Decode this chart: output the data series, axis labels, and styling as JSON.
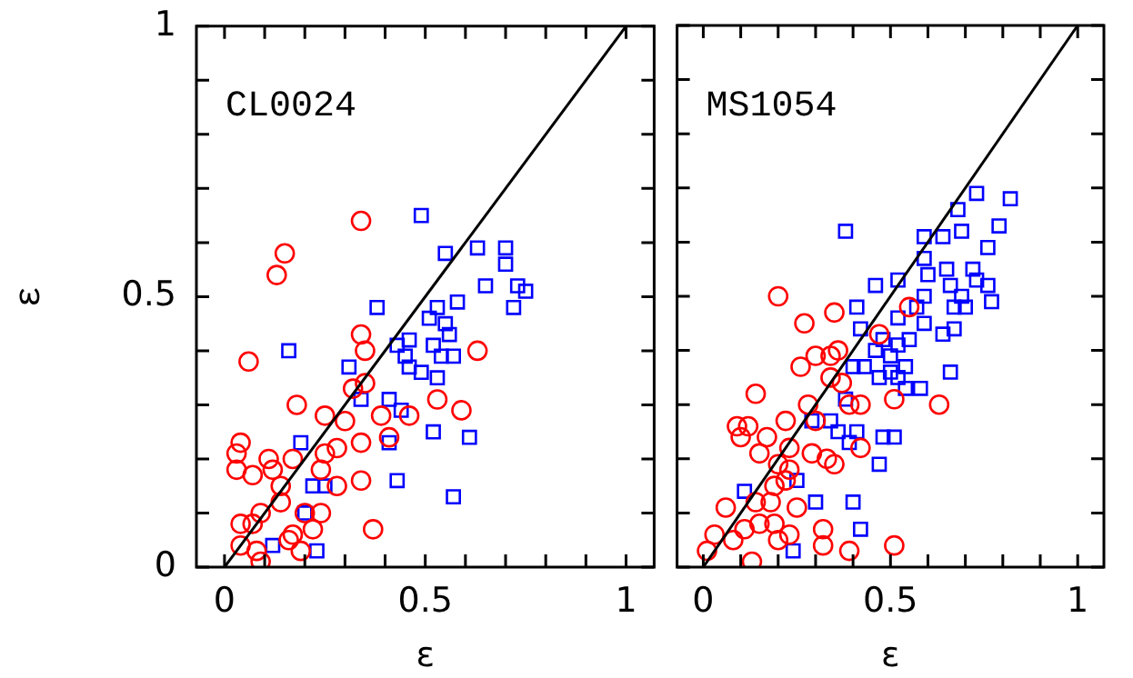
{
  "chart_data": [
    {
      "type": "scatter",
      "annotations": [
        "CL0024"
      ],
      "xlabel": "ε",
      "ylabel": "ε",
      "xlim": [
        -0.07,
        1.07
      ],
      "ylim": [
        0,
        1
      ],
      "xticks": [
        {
          "value": 0,
          "label": "0"
        },
        {
          "value": 0.1,
          "label": null
        },
        {
          "value": 0.2,
          "label": null
        },
        {
          "value": 0.3,
          "label": null
        },
        {
          "value": 0.4,
          "label": null
        },
        {
          "value": 0.5,
          "label": "0.5"
        },
        {
          "value": 0.6,
          "label": null
        },
        {
          "value": 0.7,
          "label": null
        },
        {
          "value": 0.8,
          "label": null
        },
        {
          "value": 0.9,
          "label": null
        },
        {
          "value": 1,
          "label": "1"
        }
      ],
      "yticks": [
        {
          "value": 0,
          "label": "0"
        },
        {
          "value": 0.1,
          "label": null
        },
        {
          "value": 0.2,
          "label": null
        },
        {
          "value": 0.3,
          "label": null
        },
        {
          "value": 0.4,
          "label": null
        },
        {
          "value": 0.5,
          "label": "0.5"
        },
        {
          "value": 0.6,
          "label": null
        },
        {
          "value": 0.7,
          "label": null
        },
        {
          "value": 0.8,
          "label": null
        },
        {
          "value": 0.9,
          "label": null
        },
        {
          "value": 1,
          "label": "1"
        }
      ],
      "series": [
        {
          "color": "#ff0000",
          "marker": "circle",
          "x": [
            0.34,
            0.15,
            0.13,
            0.06,
            0.34,
            0.35,
            0.63,
            0.18,
            0.53,
            0.35,
            0.32,
            0.25,
            0.3,
            0.39,
            0.46,
            0.59,
            0.34,
            0.41,
            0.04,
            0.03,
            0.03,
            0.11,
            0.12,
            0.17,
            0.25,
            0.24,
            0.28,
            0.14,
            0.14,
            0.09,
            0.07,
            0.04,
            0.2,
            0.22,
            0.17,
            0.16,
            0.19,
            0.08,
            0.04,
            0.34,
            0.37,
            0.07,
            0.24,
            0.28,
            0.09
          ],
          "values": [
            0.64,
            0.58,
            0.54,
            0.38,
            0.43,
            0.4,
            0.4,
            0.3,
            0.31,
            0.34,
            0.33,
            0.28,
            0.27,
            0.28,
            0.28,
            0.29,
            0.23,
            0.24,
            0.23,
            0.21,
            0.18,
            0.2,
            0.18,
            0.2,
            0.21,
            0.18,
            0.15,
            0.15,
            0.12,
            0.1,
            0.08,
            0.08,
            0.1,
            0.07,
            0.06,
            0.05,
            0.03,
            0.03,
            0.04,
            0.16,
            0.07,
            0.17,
            0.1,
            0.22,
            0.01
          ]
        },
        {
          "color": "#0000ff",
          "marker": "square",
          "x": [
            0.49,
            0.55,
            0.63,
            0.7,
            0.7,
            0.65,
            0.73,
            0.75,
            0.72,
            0.38,
            0.53,
            0.58,
            0.55,
            0.56,
            0.51,
            0.46,
            0.43,
            0.45,
            0.52,
            0.54,
            0.57,
            0.49,
            0.31,
            0.46,
            0.53,
            0.16,
            0.34,
            0.41,
            0.44,
            0.19,
            0.41,
            0.52,
            0.61,
            0.22,
            0.25,
            0.43,
            0.57,
            0.12,
            0.23,
            0.2
          ],
          "values": [
            0.65,
            0.58,
            0.59,
            0.59,
            0.56,
            0.52,
            0.52,
            0.51,
            0.48,
            0.48,
            0.48,
            0.49,
            0.45,
            0.43,
            0.46,
            0.42,
            0.41,
            0.39,
            0.41,
            0.39,
            0.39,
            0.36,
            0.37,
            0.37,
            0.35,
            0.4,
            0.31,
            0.31,
            0.29,
            0.23,
            0.23,
            0.25,
            0.24,
            0.15,
            0.15,
            0.16,
            0.13,
            0.04,
            0.03,
            0.1
          ]
        },
        {
          "type": "line",
          "color": "#000000",
          "marker": "none",
          "x": [
            0,
            1
          ],
          "values": [
            0,
            1
          ]
        }
      ]
    },
    {
      "type": "scatter",
      "annotations": [
        "MS1054"
      ],
      "xlabel": "ε",
      "tick_labels": "x",
      "xlim": [
        -0.07,
        1.07
      ],
      "ylim": [
        0,
        1
      ],
      "xticks": [
        {
          "value": 0,
          "label": "0"
        },
        {
          "value": 0.1,
          "label": null
        },
        {
          "value": 0.2,
          "label": null
        },
        {
          "value": 0.3,
          "label": null
        },
        {
          "value": 0.4,
          "label": null
        },
        {
          "value": 0.5,
          "label": "0.5"
        },
        {
          "value": 0.6,
          "label": null
        },
        {
          "value": 0.7,
          "label": null
        },
        {
          "value": 0.8,
          "label": null
        },
        {
          "value": 0.9,
          "label": null
        },
        {
          "value": 1,
          "label": "1"
        }
      ],
      "yticks": [
        {
          "value": 0,
          "label": null
        },
        {
          "value": 0.1,
          "label": null
        },
        {
          "value": 0.2,
          "label": null
        },
        {
          "value": 0.3,
          "label": null
        },
        {
          "value": 0.4,
          "label": null
        },
        {
          "value": 0.5,
          "label": null
        },
        {
          "value": 0.6,
          "label": null
        },
        {
          "value": 0.7,
          "label": null
        },
        {
          "value": 0.8,
          "label": null
        },
        {
          "value": 0.9,
          "label": null
        },
        {
          "value": 1,
          "label": null
        }
      ],
      "series": [
        {
          "color": "#ff0000",
          "marker": "circle",
          "x": [
            0.2,
            0.35,
            0.27,
            0.55,
            0.3,
            0.36,
            0.34,
            0.26,
            0.47,
            0.34,
            0.37,
            0.51,
            0.63,
            0.39,
            0.42,
            0.14,
            0.28,
            0.3,
            0.22,
            0.09,
            0.12,
            0.1,
            0.17,
            0.15,
            0.23,
            0.29,
            0.33,
            0.42,
            0.2,
            0.23,
            0.35,
            0.19,
            0.22,
            0.14,
            0.06,
            0.18,
            0.25,
            0.32,
            0.15,
            0.19,
            0.11,
            0.03,
            0.08,
            0.2,
            0.23,
            0.01,
            0.13,
            0.39,
            0.51,
            0.32
          ],
          "values": [
            0.5,
            0.47,
            0.45,
            0.48,
            0.39,
            0.4,
            0.39,
            0.37,
            0.43,
            0.35,
            0.34,
            0.31,
            0.3,
            0.3,
            0.3,
            0.32,
            0.3,
            0.27,
            0.27,
            0.26,
            0.26,
            0.24,
            0.24,
            0.21,
            0.22,
            0.21,
            0.2,
            0.22,
            0.19,
            0.18,
            0.19,
            0.15,
            0.16,
            0.12,
            0.11,
            0.12,
            0.11,
            0.07,
            0.08,
            0.08,
            0.07,
            0.06,
            0.05,
            0.05,
            0.06,
            0.03,
            0.01,
            0.03,
            0.04,
            0.04
          ]
        },
        {
          "color": "#0000ff",
          "marker": "square",
          "x": [
            0.38,
            0.73,
            0.82,
            0.68,
            0.79,
            0.69,
            0.64,
            0.59,
            0.76,
            0.59,
            0.65,
            0.72,
            0.52,
            0.46,
            0.6,
            0.66,
            0.73,
            0.76,
            0.69,
            0.59,
            0.77,
            0.41,
            0.57,
            0.67,
            0.7,
            0.52,
            0.42,
            0.59,
            0.55,
            0.64,
            0.67,
            0.48,
            0.52,
            0.46,
            0.4,
            0.43,
            0.5,
            0.54,
            0.5,
            0.47,
            0.52,
            0.54,
            0.66,
            0.58,
            0.38,
            0.29,
            0.34,
            0.36,
            0.41,
            0.39,
            0.48,
            0.51,
            0.47,
            0.25,
            0.11,
            0.3,
            0.4,
            0.42,
            0.24
          ],
          "values": [
            0.62,
            0.69,
            0.68,
            0.66,
            0.63,
            0.62,
            0.61,
            0.61,
            0.59,
            0.57,
            0.55,
            0.55,
            0.53,
            0.52,
            0.54,
            0.52,
            0.53,
            0.52,
            0.5,
            0.5,
            0.49,
            0.48,
            0.48,
            0.48,
            0.48,
            0.46,
            0.44,
            0.45,
            0.42,
            0.43,
            0.44,
            0.42,
            0.41,
            0.4,
            0.37,
            0.37,
            0.39,
            0.37,
            0.36,
            0.35,
            0.35,
            0.33,
            0.36,
            0.33,
            0.31,
            0.27,
            0.27,
            0.25,
            0.25,
            0.23,
            0.24,
            0.24,
            0.19,
            0.16,
            0.14,
            0.12,
            0.12,
            0.07,
            0.03
          ]
        },
        {
          "type": "line",
          "color": "#000000",
          "marker": "none",
          "x": [
            0,
            1
          ],
          "values": [
            0,
            1
          ]
        }
      ]
    }
  ]
}
